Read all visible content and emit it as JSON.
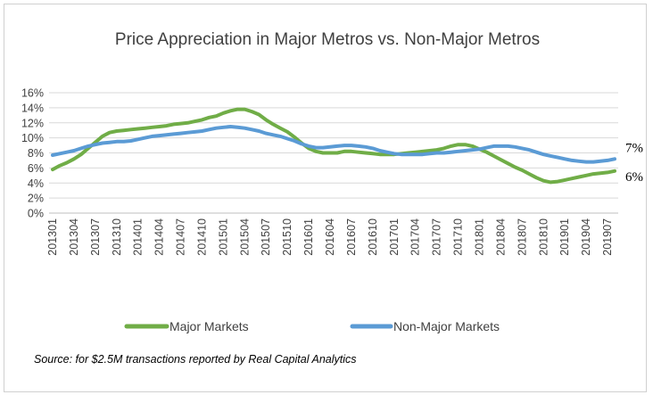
{
  "chart_data": {
    "type": "line",
    "title": "Price Appreciation in Major Metros vs. Non-Major Metros",
    "xlabel": "",
    "ylabel": "",
    "ylim": [
      0,
      16
    ],
    "yticks": [
      "0%",
      "2%",
      "4%",
      "6%",
      "8%",
      "10%",
      "12%",
      "14%",
      "16%"
    ],
    "grid": true,
    "legend_position": "bottom",
    "x": [
      "201301",
      "201302",
      "201303",
      "201304",
      "201305",
      "201306",
      "201307",
      "201308",
      "201309",
      "201310",
      "201311",
      "201312",
      "201401",
      "201402",
      "201403",
      "201404",
      "201405",
      "201406",
      "201407",
      "201408",
      "201409",
      "201410",
      "201411",
      "201412",
      "201501",
      "201502",
      "201503",
      "201504",
      "201505",
      "201506",
      "201507",
      "201508",
      "201509",
      "201510",
      "201511",
      "201512",
      "201601",
      "201602",
      "201603",
      "201604",
      "201605",
      "201606",
      "201607",
      "201608",
      "201609",
      "201610",
      "201611",
      "201612",
      "201701",
      "201702",
      "201703",
      "201704",
      "201705",
      "201706",
      "201707",
      "201708",
      "201709",
      "201710",
      "201711",
      "201712",
      "201801",
      "201802",
      "201803",
      "201804",
      "201805",
      "201806",
      "201807",
      "201808",
      "201809",
      "201810",
      "201811",
      "201812",
      "201901",
      "201902",
      "201903",
      "201904",
      "201905",
      "201906",
      "201907",
      "201908"
    ],
    "xtick_labels": [
      "201301",
      "201304",
      "201307",
      "201310",
      "201401",
      "201404",
      "201407",
      "201410",
      "201501",
      "201504",
      "201507",
      "201510",
      "201601",
      "201604",
      "201607",
      "201610",
      "201701",
      "201704",
      "201707",
      "201710",
      "201801",
      "201804",
      "201807",
      "201810",
      "201901",
      "201904",
      "201907"
    ],
    "series": [
      {
        "name": "Major Markets",
        "color": "#70ad47",
        "end_label": "6%",
        "values": [
          5.8,
          6.3,
          6.7,
          7.2,
          7.8,
          8.6,
          9.4,
          10.2,
          10.7,
          10.9,
          11.0,
          11.1,
          11.2,
          11.3,
          11.4,
          11.5,
          11.6,
          11.8,
          11.9,
          12.0,
          12.2,
          12.4,
          12.7,
          12.9,
          13.3,
          13.6,
          13.8,
          13.8,
          13.5,
          13.1,
          12.4,
          11.8,
          11.3,
          10.8,
          10.1,
          9.3,
          8.6,
          8.2,
          8.0,
          8.0,
          8.0,
          8.2,
          8.2,
          8.1,
          8.0,
          7.9,
          7.8,
          7.8,
          7.8,
          7.9,
          8.0,
          8.1,
          8.2,
          8.3,
          8.4,
          8.6,
          8.9,
          9.1,
          9.1,
          8.9,
          8.5,
          8.1,
          7.6,
          7.1,
          6.6,
          6.1,
          5.7,
          5.2,
          4.7,
          4.3,
          4.1,
          4.2,
          4.4,
          4.6,
          4.8,
          5.0,
          5.2,
          5.3,
          5.4,
          5.6
        ]
      },
      {
        "name": "Non-Major Markets",
        "color": "#5b9bd5",
        "end_label": "7%",
        "values": [
          7.7,
          7.9,
          8.1,
          8.3,
          8.6,
          8.9,
          9.1,
          9.3,
          9.4,
          9.5,
          9.5,
          9.6,
          9.8,
          10.0,
          10.2,
          10.3,
          10.4,
          10.5,
          10.6,
          10.7,
          10.8,
          10.9,
          11.1,
          11.3,
          11.4,
          11.5,
          11.4,
          11.3,
          11.1,
          10.9,
          10.6,
          10.4,
          10.2,
          9.9,
          9.6,
          9.2,
          8.9,
          8.7,
          8.7,
          8.8,
          8.9,
          9.0,
          9.0,
          8.9,
          8.8,
          8.6,
          8.3,
          8.1,
          7.9,
          7.8,
          7.8,
          7.8,
          7.8,
          7.9,
          8.0,
          8.0,
          8.1,
          8.2,
          8.3,
          8.4,
          8.5,
          8.7,
          8.9,
          8.9,
          8.9,
          8.8,
          8.6,
          8.4,
          8.1,
          7.8,
          7.6,
          7.4,
          7.2,
          7.0,
          6.9,
          6.8,
          6.8,
          6.9,
          7.0,
          7.2
        ]
      }
    ],
    "source": "Source: for $2.5M transactions reported by Real Capital Analytics"
  }
}
